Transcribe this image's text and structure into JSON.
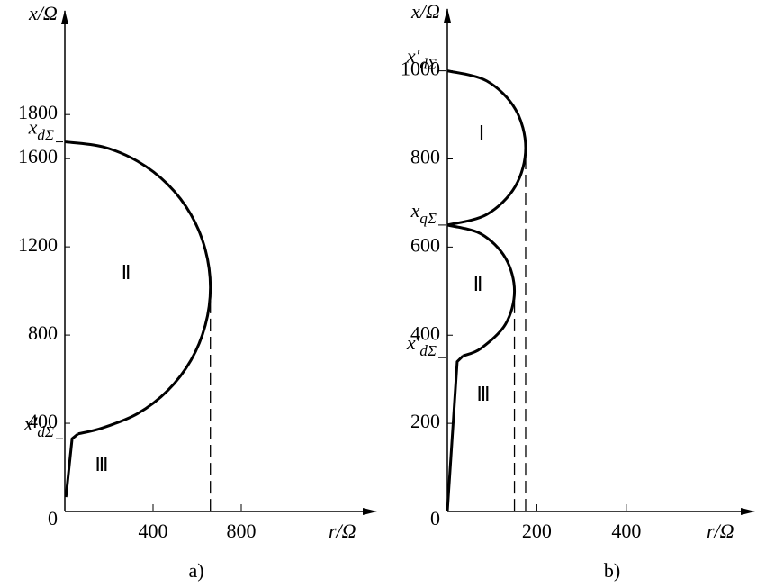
{
  "chart_data": [
    {
      "type": "line",
      "caption": "a)",
      "xlabel": "r/Ω",
      "ylabel": "x/Ω",
      "xlim": [
        0,
        1400
      ],
      "ylim": [
        0,
        2250
      ],
      "xticks": [
        400,
        800
      ],
      "yticks": [
        0,
        400,
        800,
        1200,
        1600,
        1800
      ],
      "series": [
        {
          "name": "Ⅱ",
          "color": "#000",
          "style": "solid",
          "x": [
            0,
            171,
            330,
            467,
            572,
            637,
            660,
            637,
            572,
            467,
            330,
            171,
            60
          ],
          "values": [
            1676,
            1654,
            1588,
            1483,
            1346,
            1187,
            1016,
            845,
            686,
            549,
            444,
            379,
            352
          ]
        },
        {
          "name": "Ⅲ",
          "color": "#000",
          "style": "solid",
          "x": [
            5,
            33,
            60
          ],
          "values": [
            65,
            330,
            352
          ]
        },
        {
          "color": "#000",
          "style": "dashed",
          "x": [
            660,
            660
          ],
          "values": [
            0,
            1016
          ]
        }
      ],
      "annotations": [
        {
          "base": "x",
          "sub": "dΣ",
          "value": 1676
        },
        {
          "base": "x′",
          "sub": "dΣ",
          "value": 330
        }
      ]
    },
    {
      "type": "line",
      "caption": "b)",
      "xlabel": "r/Ω",
      "ylabel": "x/Ω",
      "xlim": [
        0,
        680
      ],
      "ylim": [
        0,
        1130
      ],
      "xticks": [
        200,
        400
      ],
      "yticks": [
        0,
        200,
        400,
        600,
        800,
        1000
      ],
      "series": [
        {
          "name": "Ⅰ",
          "color": "#000",
          "style": "solid",
          "x": [
            0,
            88,
            152,
            175,
            152,
            88,
            0
          ],
          "values": [
            1000,
            977,
            913,
            825,
            738,
            674,
            650
          ]
        },
        {
          "name": "Ⅱ",
          "color": "#000",
          "style": "solid",
          "x": [
            0,
            75,
            130,
            150,
            130,
            75,
            35
          ],
          "values": [
            650,
            630,
            575,
            500,
            425,
            370,
            353
          ]
        },
        {
          "name": "Ⅲ",
          "color": "#000",
          "style": "solid",
          "x": [
            0,
            22,
            35
          ],
          "values": [
            0,
            340,
            353
          ]
        },
        {
          "color": "#000",
          "style": "dashed",
          "x": [
            150,
            150
          ],
          "values": [
            0,
            500
          ]
        },
        {
          "color": "#000",
          "style": "dashed",
          "x": [
            175,
            175
          ],
          "values": [
            0,
            825
          ]
        }
      ],
      "annotations": [
        {
          "base": "x′",
          "sub": "dΣ",
          "value": 1000
        },
        {
          "base": "x",
          "sub": "qΣ",
          "value": 650
        },
        {
          "base": "x′",
          "sub": "dΣ",
          "value": 349
        }
      ]
    }
  ]
}
